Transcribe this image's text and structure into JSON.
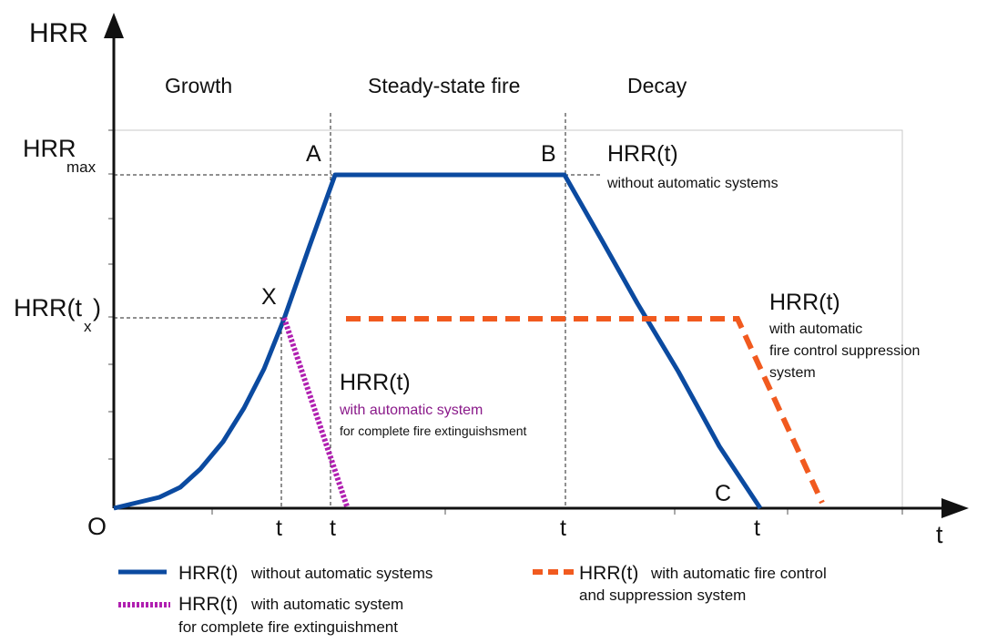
{
  "colors": {
    "without_systems": "#0b4aa0",
    "complete_extinguishment": "#b01fb0",
    "fire_control": "#f15a1f"
  },
  "axes": {
    "y_label": "HRR",
    "x_label": "t",
    "origin": "O"
  },
  "phases": [
    "Growth",
    "Steady-state fire",
    "Decay"
  ],
  "y_marks": {
    "hrr_max_main": "HRR",
    "hrr_max_sub": "max",
    "hrr_tx_main": "HRR(t",
    "hrr_tx_sub": "x",
    "hrr_tx_close": ")"
  },
  "x_ticks": [
    "t",
    "t",
    "t",
    "t"
  ],
  "points": {
    "A": "A",
    "B": "B",
    "C": "C",
    "X": "X"
  },
  "annotations": {
    "without": {
      "title": "HRR(t)",
      "desc": "without automatic systems"
    },
    "control": {
      "title": "HRR(t)",
      "line1": "with automatic",
      "line2": "fire control suppression",
      "line3": "system"
    },
    "extinguish": {
      "title": "HRR(t)",
      "line1": "with automatic system",
      "line2": "for complete fire extinguishsment"
    }
  },
  "legend": {
    "without": {
      "title": "HRR(t)",
      "desc": "without automatic systems"
    },
    "extinguish": {
      "title": "HRR(t)",
      "desc1": "with automatic system",
      "desc2": "for complete fire extinguishment"
    },
    "control": {
      "title": "HRR(t)",
      "desc1": "with automatic fire control",
      "desc2": "and suppression system"
    }
  }
}
